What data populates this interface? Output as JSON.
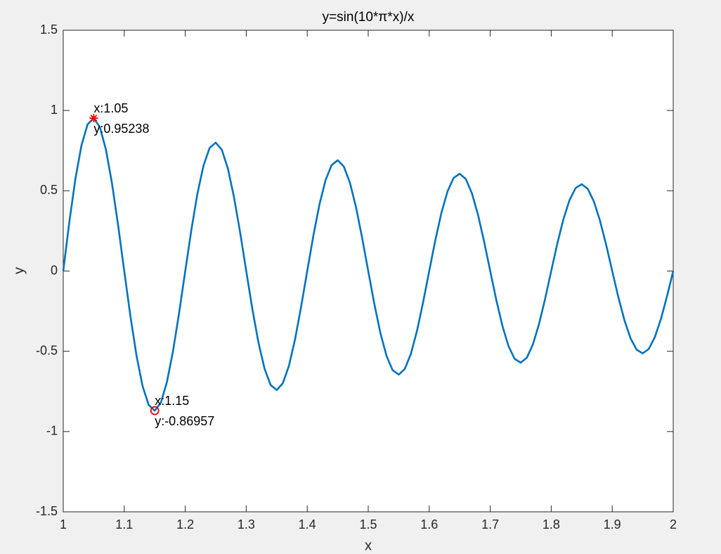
{
  "chart_data": {
    "type": "line",
    "title": "y=sin(10*π*x)/x",
    "x_label": "x",
    "y_label": "y",
    "x": [
      1,
      1.01,
      1.02,
      1.03,
      1.04,
      1.05,
      1.06,
      1.07,
      1.08,
      1.09,
      1.1,
      1.11,
      1.12,
      1.13,
      1.14,
      1.15,
      1.16,
      1.17,
      1.18,
      1.19,
      1.2,
      1.21,
      1.22,
      1.23,
      1.24,
      1.25,
      1.26,
      1.27,
      1.28,
      1.29,
      1.3,
      1.31,
      1.32,
      1.33,
      1.34,
      1.35,
      1.36,
      1.37,
      1.38,
      1.39,
      1.4,
      1.41,
      1.42,
      1.43,
      1.44,
      1.45,
      1.46,
      1.47,
      1.48,
      1.49,
      1.5,
      1.51,
      1.52,
      1.53,
      1.54,
      1.55,
      1.56,
      1.57,
      1.58,
      1.59,
      1.6,
      1.61,
      1.62,
      1.63,
      1.64,
      1.65,
      1.66,
      1.67,
      1.68,
      1.69,
      1.7,
      1.71,
      1.72,
      1.73,
      1.74,
      1.75,
      1.76,
      1.77,
      1.78,
      1.79,
      1.8,
      1.81,
      1.82,
      1.83,
      1.84,
      1.85,
      1.86,
      1.87,
      1.88,
      1.89,
      1.9,
      1.91,
      1.92,
      1.93,
      1.94,
      1.95,
      1.96,
      1.97,
      1.98,
      1.99,
      2
    ],
    "series": [
      {
        "color": "#0072bd",
        "values": [
          0,
          0.306,
          0.576,
          0.785,
          0.914,
          0.952,
          0.897,
          0.756,
          0.544,
          0.284,
          0,
          -0.278,
          -0.525,
          -0.716,
          -0.834,
          -0.87,
          -0.82,
          -0.691,
          -0.498,
          -0.26,
          0,
          0.255,
          0.482,
          0.658,
          0.767,
          0.8,
          0.755,
          0.637,
          0.459,
          0.24,
          0,
          -0.236,
          -0.445,
          -0.608,
          -0.71,
          -0.741,
          -0.699,
          -0.591,
          -0.426,
          -0.222,
          0,
          0.219,
          0.414,
          0.566,
          0.66,
          0.69,
          0.651,
          0.55,
          0.397,
          0.207,
          0,
          -0.205,
          -0.387,
          -0.529,
          -0.618,
          -0.645,
          -0.61,
          -0.515,
          -0.372,
          -0.194,
          0,
          0.192,
          0.363,
          0.496,
          0.58,
          0.606,
          0.573,
          0.484,
          0.35,
          0.183,
          0,
          -0.181,
          -0.342,
          -0.468,
          -0.547,
          -0.571,
          -0.54,
          -0.457,
          -0.33,
          -0.173,
          0,
          0.171,
          0.323,
          0.442,
          0.517,
          0.541,
          0.511,
          0.433,
          0.313,
          0.164,
          0,
          -0.162,
          -0.306,
          -0.419,
          -0.49,
          -0.513,
          -0.485,
          -0.411,
          -0.297,
          -0.155,
          0
        ]
      }
    ],
    "annotations": [
      {
        "x": 1.05,
        "y": 0.95238,
        "label_x": "x:1.05",
        "label_y": "y:0.95238",
        "marker": "star",
        "color": "#ff0000"
      },
      {
        "x": 1.15,
        "y": -0.86957,
        "label_x": "x:1.15",
        "label_y": "y:-0.86957",
        "marker": "circle",
        "color": "#ff0000"
      }
    ],
    "xlim": [
      1,
      2
    ],
    "xticks": [
      1,
      1.1,
      1.2,
      1.3,
      1.4,
      1.5,
      1.6,
      1.7,
      1.8,
      1.9,
      2
    ],
    "ylim": [
      -1.5,
      1.5
    ],
    "yticks": [
      -1.5,
      -1,
      -0.5,
      0,
      0.5,
      1,
      1.5
    ]
  }
}
